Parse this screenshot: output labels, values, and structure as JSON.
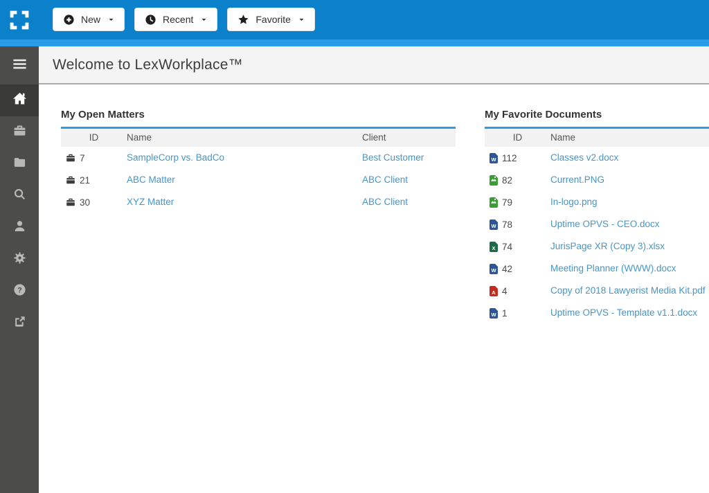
{
  "topbar": {
    "buttons": [
      {
        "id": "new",
        "label": "New",
        "icon": "plus-circle-icon"
      },
      {
        "id": "recent",
        "label": "Recent",
        "icon": "clock-icon"
      },
      {
        "id": "favorite",
        "label": "Favorite",
        "icon": "star-icon"
      }
    ]
  },
  "sidebar": {
    "toggle_icon": "hamburger-icon",
    "items": [
      {
        "id": "home",
        "icon": "home-icon",
        "active": true
      },
      {
        "id": "matters",
        "icon": "briefcase-icon",
        "active": false
      },
      {
        "id": "documents",
        "icon": "folder-icon",
        "active": false
      },
      {
        "id": "search",
        "icon": "search-icon",
        "active": false
      },
      {
        "id": "clients",
        "icon": "user-icon",
        "active": false
      },
      {
        "id": "settings",
        "icon": "gear-icon",
        "active": false
      },
      {
        "id": "help",
        "icon": "question-circle-icon",
        "active": false
      },
      {
        "id": "external",
        "icon": "external-link-icon",
        "active": false
      }
    ]
  },
  "header": {
    "title": "Welcome to LexWorkplace™"
  },
  "panels": {
    "open_matters": {
      "title": "My Open Matters",
      "columns": [
        "ID",
        "Name",
        "Client"
      ],
      "rows": [
        {
          "icon": "briefcase-icon",
          "id": "7",
          "name": "SampleCorp vs. BadCo",
          "client": "Best Customer"
        },
        {
          "icon": "briefcase-icon",
          "id": "21",
          "name": "ABC Matter",
          "client": "ABC Client"
        },
        {
          "icon": "briefcase-icon",
          "id": "30",
          "name": "XYZ Matter",
          "client": "ABC Client"
        }
      ]
    },
    "favorite_documents": {
      "title": "My Favorite Documents",
      "columns": [
        "ID",
        "Name"
      ],
      "rows": [
        {
          "icon": "word-file-icon",
          "id": "112",
          "name": "Classes v2.docx"
        },
        {
          "icon": "image-file-icon",
          "id": "82",
          "name": "Current.PNG"
        },
        {
          "icon": "image-file-icon",
          "id": "79",
          "name": "In-logo.png"
        },
        {
          "icon": "word-file-icon",
          "id": "78",
          "name": "Uptime OPVS - CEO.docx"
        },
        {
          "icon": "excel-file-icon",
          "id": "74",
          "name": "JurisPage XR (Copy 3).xlsx"
        },
        {
          "icon": "word-file-icon",
          "id": "42",
          "name": "Meeting Planner (WWW).docx"
        },
        {
          "icon": "pdf-file-icon",
          "id": "4",
          "name": "Copy of 2018 Lawyerist Media Kit.pdf"
        },
        {
          "icon": "word-file-icon",
          "id": "1",
          "name": "Uptime OPVS - Template v1.1.docx"
        }
      ]
    }
  },
  "colors": {
    "topbar_blue": "#0b81cb",
    "accent_blue": "#2b9de8",
    "link_blue": "#4696c9",
    "sidebar_gray": "#4c4c4a",
    "sidebar_active": "#3a3a39",
    "word_blue": "#2a5699",
    "excel_green": "#1d6b45",
    "image_green": "#3d9b35",
    "pdf_red": "#c42b1c"
  }
}
